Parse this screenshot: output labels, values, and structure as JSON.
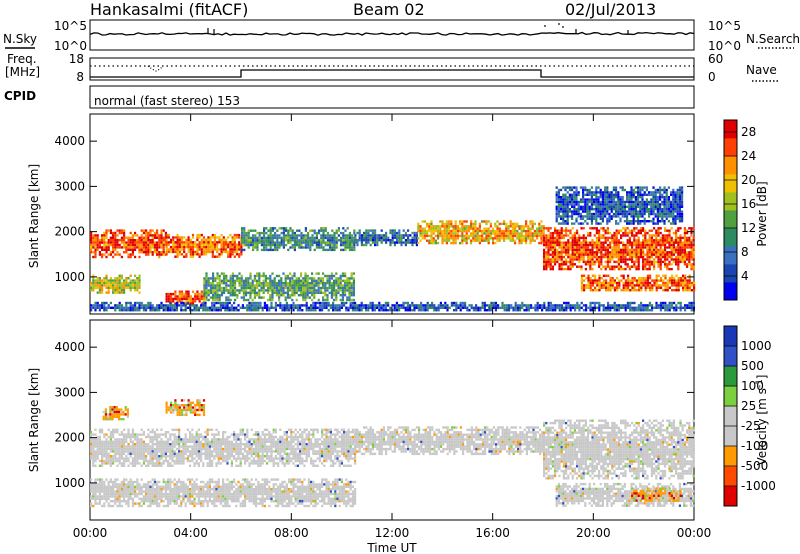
{
  "header": {
    "station": "Hankasalmi (fitACF)",
    "beam": "Beam 02",
    "date": "02/Jul/2013"
  },
  "noise_panel": {
    "left_label": "N.Sky",
    "right_label": "N.Search",
    "left_ticks": [
      "10^5",
      "10^0"
    ],
    "right_ticks": [
      "10^5",
      "10^0"
    ]
  },
  "freq_panel": {
    "left_label_1": "Freq.",
    "left_label_2": "[MHz]",
    "right_label": "Nave",
    "left_ticks": [
      "18",
      "8"
    ],
    "right_ticks": [
      "60",
      "0"
    ]
  },
  "cpid_panel": {
    "label": "CPID",
    "text": "normal (fast stereo) 153"
  },
  "colors": {
    "power_scale": [
      "#0000ee",
      "#1a44b0",
      "#3a70c0",
      "#2e8a60",
      "#50a040",
      "#a0c020",
      "#f0c000",
      "#ff9000",
      "#ff4000",
      "#e00000"
    ],
    "velocity_scale": [
      "#e00000",
      "#ff4a00",
      "#ff9a00",
      "#c8c8c8",
      "#c8c8c8",
      "#7cd040",
      "#2a9a3c",
      "#3050c8",
      "#1838b8"
    ]
  },
  "chart_data": [
    {
      "type": "heatmap",
      "name": "power",
      "xlabel": "",
      "ylabel": "Slant Range [km]",
      "x_ticks": [
        "00:00",
        "04:00",
        "08:00",
        "12:00",
        "16:00",
        "20:00",
        "00:00"
      ],
      "xlim_hours": [
        0,
        24
      ],
      "y_ticks": [
        1000,
        2000,
        3000,
        4000
      ],
      "ylim": [
        180,
        4600
      ],
      "colorbar": {
        "label": "Power [dB]",
        "ticks": [
          4,
          8,
          12,
          16,
          20,
          24,
          28
        ],
        "range": [
          0,
          30
        ]
      },
      "regions": [
        {
          "t": [
            0.0,
            3.0
          ],
          "range": [
            1450,
            2050
          ],
          "level": 26
        },
        {
          "t": [
            3.0,
            6.0
          ],
          "range": [
            1450,
            1950
          ],
          "level": 24
        },
        {
          "t": [
            6.0,
            10.5
          ],
          "range": [
            1600,
            2100
          ],
          "level": 10
        },
        {
          "t": [
            10.5,
            13.0
          ],
          "range": [
            1700,
            2050
          ],
          "level": 8
        },
        {
          "t": [
            13.0,
            18.0
          ],
          "range": [
            1750,
            2250
          ],
          "level": 20
        },
        {
          "t": [
            18.0,
            24.0
          ],
          "range": [
            1150,
            2100
          ],
          "level": 26
        },
        {
          "t": [
            18.5,
            23.5
          ],
          "range": [
            2200,
            3000
          ],
          "level": 6
        },
        {
          "t": [
            0.0,
            2.0
          ],
          "range": [
            650,
            1050
          ],
          "level": 18
        },
        {
          "t": [
            3.0,
            4.5
          ],
          "range": [
            400,
            700
          ],
          "level": 26
        },
        {
          "t": [
            4.5,
            10.5
          ],
          "range": [
            500,
            1100
          ],
          "level": 12
        },
        {
          "t": [
            19.5,
            24.0
          ],
          "range": [
            700,
            1050
          ],
          "level": 24
        },
        {
          "t": [
            0.0,
            24.0
          ],
          "range": [
            250,
            450
          ],
          "level": 6
        }
      ]
    },
    {
      "type": "heatmap",
      "name": "velocity",
      "xlabel": "Time UT",
      "ylabel": "Slant Range [km]",
      "x_ticks": [
        "00:00",
        "04:00",
        "08:00",
        "12:00",
        "16:00",
        "20:00",
        "00:00"
      ],
      "xlim_hours": [
        0,
        24
      ],
      "y_ticks": [
        1000,
        2000,
        3000,
        4000
      ],
      "ylim": [
        180,
        4600
      ],
      "colorbar": {
        "label": "Velocity [m s^-1]",
        "ticks": [
          -1000,
          -500,
          -100,
          -25,
          25,
          100,
          500,
          1000
        ]
      },
      "regions": [
        {
          "t": [
            0.0,
            10.5
          ],
          "range": [
            1400,
            2200
          ],
          "level": 0
        },
        {
          "t": [
            10.5,
            18.0
          ],
          "range": [
            1650,
            2250
          ],
          "level": 0
        },
        {
          "t": [
            18.0,
            24.0
          ],
          "range": [
            1100,
            2400
          ],
          "level": 0
        },
        {
          "t": [
            18.5,
            24.0
          ],
          "range": [
            500,
            1000
          ],
          "level": 0
        },
        {
          "t": [
            0.0,
            10.5
          ],
          "range": [
            500,
            1100
          ],
          "level": 0
        },
        {
          "t": [
            0.5,
            1.5
          ],
          "range": [
            2400,
            2700
          ],
          "level": -200
        },
        {
          "t": [
            3.0,
            4.5
          ],
          "range": [
            2500,
            2850
          ],
          "level": -200
        },
        {
          "t": [
            21.5,
            23.5
          ],
          "range": [
            600,
            900
          ],
          "level": -150
        }
      ]
    }
  ]
}
